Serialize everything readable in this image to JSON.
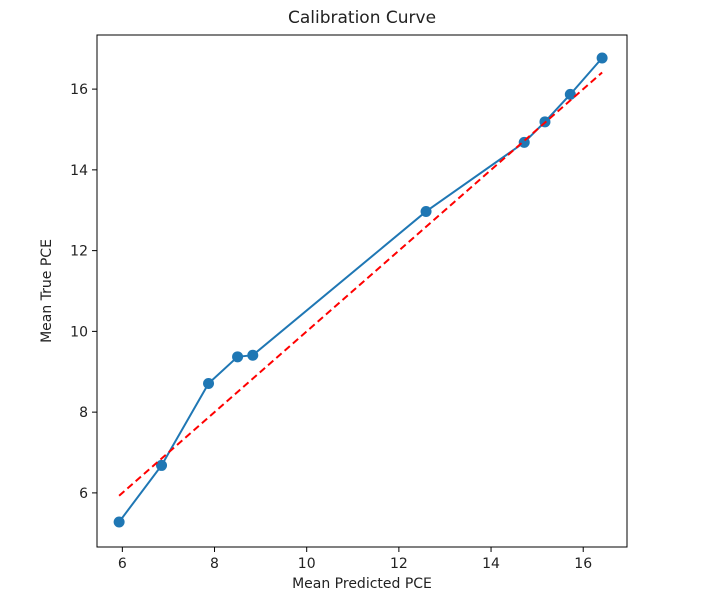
{
  "chart_data": {
    "type": "line",
    "title": "Calibration Curve",
    "xlabel": "Mean Predicted PCE",
    "ylabel": "Mean True PCE",
    "xlim": [
      5.45,
      16.95
    ],
    "ylim": [
      4.66,
      17.34
    ],
    "xticks": [
      6,
      8,
      10,
      12,
      14,
      16
    ],
    "yticks": [
      6,
      8,
      10,
      12,
      14,
      16
    ],
    "grid": false,
    "series": [
      {
        "style": "line-marker",
        "color": "#1f77b4",
        "x": [
          5.93,
          6.85,
          7.87,
          8.5,
          8.83,
          12.59,
          14.72,
          15.17,
          15.72,
          16.41
        ],
        "y": [
          5.28,
          6.68,
          8.71,
          9.37,
          9.41,
          12.97,
          14.68,
          15.19,
          15.87,
          16.77
        ]
      },
      {
        "style": "dashed",
        "color": "#ff0000",
        "x": [
          5.93,
          16.41
        ],
        "y": [
          5.93,
          16.41
        ]
      }
    ]
  }
}
